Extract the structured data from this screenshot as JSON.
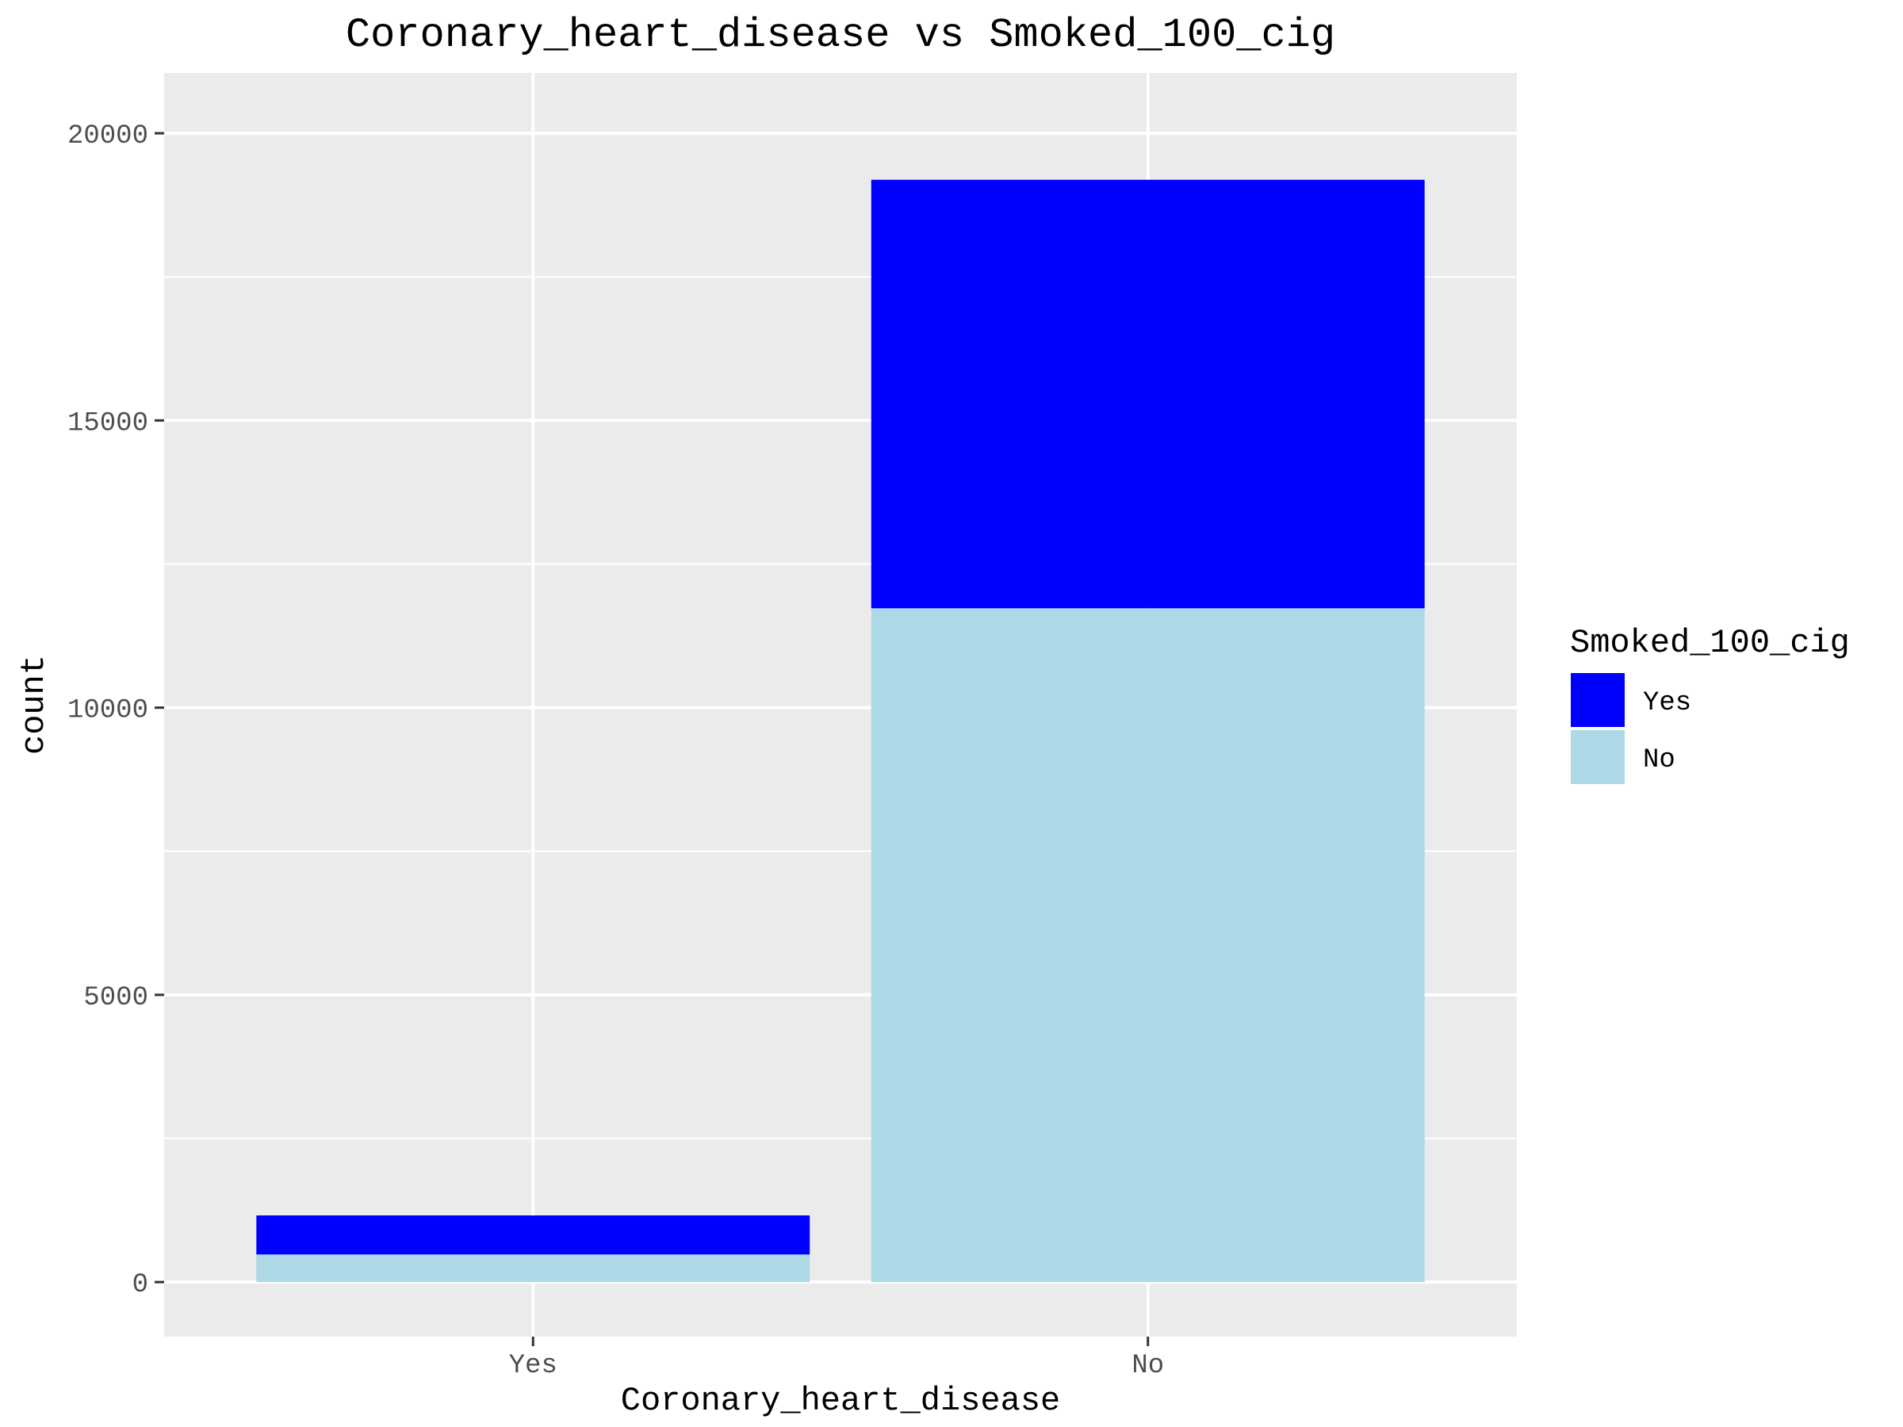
{
  "chart_data": {
    "type": "bar",
    "stacked": true,
    "title": "Coronary_heart_disease vs Smoked_100_cig",
    "xlabel": "Coronary_heart_disease",
    "ylabel": "count",
    "categories": [
      "Yes",
      "No"
    ],
    "series": [
      {
        "name": "No",
        "values": [
          480,
          11730
        ],
        "color": "#ADD8E6"
      },
      {
        "name": "Yes",
        "values": [
          680,
          7460
        ],
        "color": "#0000FF"
      }
    ],
    "ylim": [
      -950,
      21050
    ],
    "yticks": [
      0,
      5000,
      10000,
      15000,
      20000
    ],
    "grid": true,
    "legend": {
      "title": "Smoked_100_cig",
      "position": "right",
      "entries": [
        {
          "label": "Yes",
          "color": "#0000FF"
        },
        {
          "label": "No",
          "color": "#ADD8E6"
        }
      ]
    },
    "panel_background": "#EBEBEB",
    "grid_color": "#FFFFFF"
  }
}
